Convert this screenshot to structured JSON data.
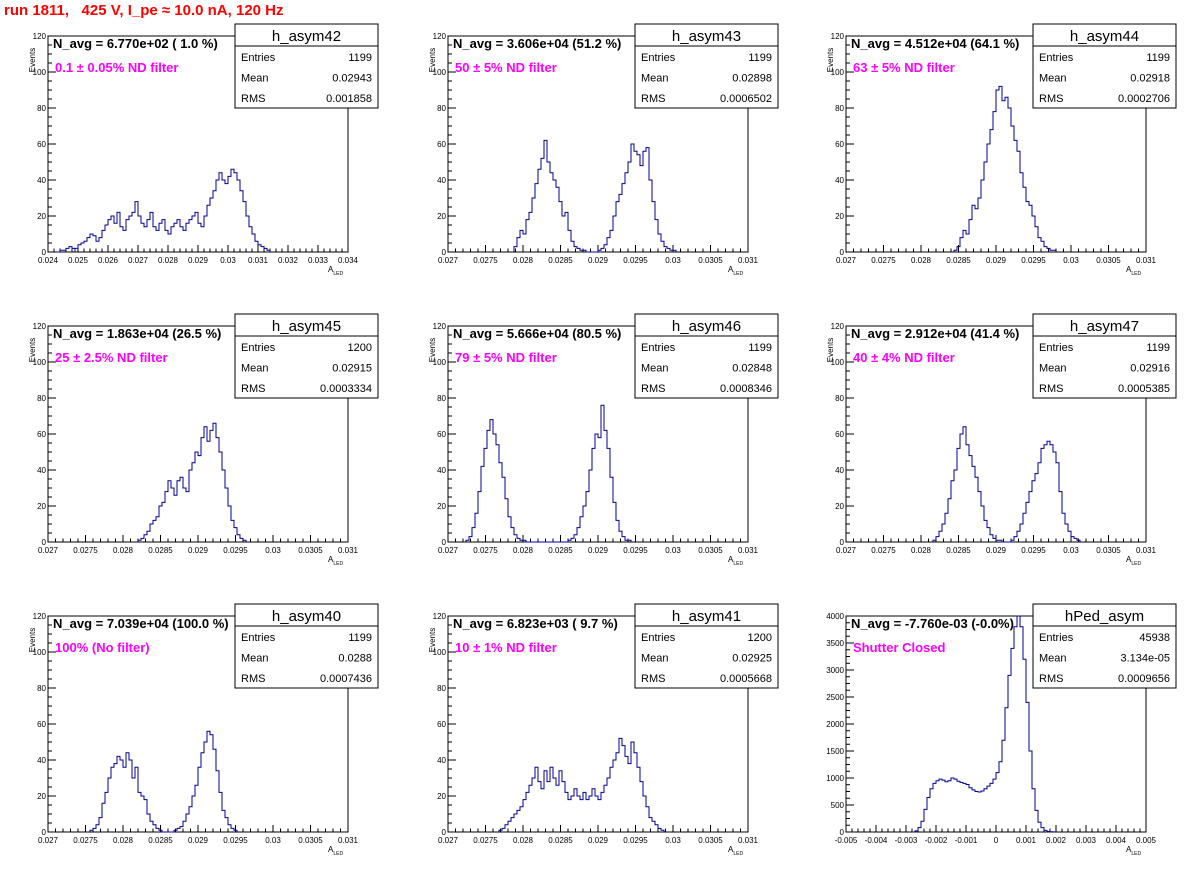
{
  "page_title": "run 1811,   425 V, I_pe ≈ 10.0 nA, 120 Hz",
  "colors": {
    "histogram_line": "#000099",
    "text": "#000000",
    "title": "#ff0000",
    "annotation": "#ff00ff"
  },
  "chart_data": [
    {
      "type": "histogram",
      "hist_name": "h_asym42",
      "stats": {
        "entries": "1199",
        "mean": "0.02943",
        "rms": "0.001858"
      },
      "navg_text": "N_avg = 6.770e+02 ( 1.0 %)",
      "filter_text": "0.1 ± 0.05% ND filter",
      "xlabel": "A",
      "xlabel_sub": "LED",
      "ylabel": "Events",
      "xlim": [
        0.024,
        0.034
      ],
      "ylim": [
        0,
        120
      ],
      "xticks": [
        "0.024",
        "0.025",
        "0.026",
        "0.027",
        "0.028",
        "0.029",
        "0.03",
        "0.031",
        "0.032",
        "0.033",
        "0.034"
      ],
      "yticks": [
        "0",
        "20",
        "40",
        "60",
        "80",
        "100",
        "120"
      ],
      "bin_width": 0.0001,
      "bins_x0": 0.0249,
      "counts": [
        2,
        4,
        5,
        6,
        8,
        10,
        9,
        6,
        8,
        12,
        15,
        18,
        20,
        16,
        22,
        14,
        12,
        18,
        20,
        22,
        28,
        20,
        16,
        14,
        18,
        22,
        14,
        12,
        16,
        18,
        12,
        10,
        14,
        16,
        18,
        14,
        12,
        16,
        18,
        20,
        22,
        16,
        14,
        20,
        26,
        30,
        34,
        40,
        44,
        40,
        38,
        42,
        46,
        44,
        40,
        34,
        28,
        20,
        14,
        10,
        6,
        4,
        3,
        2,
        1
      ],
      "extra_bins_x0": 0.0243,
      "extra_counts": [
        0,
        1,
        1,
        2,
        3,
        2
      ]
    },
    {
      "type": "histogram",
      "hist_name": "h_asym43",
      "stats": {
        "entries": "1199",
        "mean": "0.02898",
        "rms": "0.0006502"
      },
      "navg_text": "N_avg = 3.606e+04 (51.2 %)",
      "filter_text": "50 ± 5% ND filter",
      "xlabel": "A",
      "xlabel_sub": "LED",
      "ylabel": "Events",
      "xlim": [
        0.027,
        0.031
      ],
      "ylim": [
        0,
        120
      ],
      "xticks": [
        "0.027",
        "0.0275",
        "0.028",
        "0.0285",
        "0.029",
        "0.0295",
        "0.03",
        "0.0305",
        "0.031"
      ],
      "yticks": [
        "0",
        "20",
        "40",
        "60",
        "80",
        "100",
        "120"
      ],
      "bin_width": 4e-05,
      "bins_x0": 0.02788,
      "counts": [
        3,
        8,
        12,
        10,
        18,
        22,
        30,
        38,
        46,
        52,
        62,
        50,
        44,
        40,
        36,
        28,
        20,
        22,
        12,
        6,
        3,
        2,
        1,
        1,
        0,
        0,
        0,
        0,
        1,
        2,
        4,
        8,
        12,
        20,
        28,
        32,
        38,
        44,
        50,
        60,
        56,
        54,
        48,
        56,
        58,
        40,
        28,
        18,
        10,
        6,
        3,
        2,
        1,
        1
      ]
    },
    {
      "type": "histogram",
      "hist_name": "h_asym44",
      "stats": {
        "entries": "1199",
        "mean": "0.02918",
        "rms": "0.0002706"
      },
      "navg_text": "N_avg = 4.512e+04 (64.1 %)",
      "filter_text": "63 ± 5% ND filter",
      "xlabel": "A",
      "xlabel_sub": "LED",
      "ylabel": "Events",
      "xlim": [
        0.027,
        0.031
      ],
      "ylim": [
        0,
        120
      ],
      "xticks": [
        "0.027",
        "0.0275",
        "0.028",
        "0.0285",
        "0.029",
        "0.0295",
        "0.03",
        "0.0305",
        "0.031"
      ],
      "yticks": [
        "0",
        "20",
        "40",
        "60",
        "80",
        "100",
        "120"
      ],
      "bin_width": 4e-05,
      "bins_x0": 0.02844,
      "counts": [
        1,
        3,
        8,
        12,
        10,
        18,
        26,
        24,
        30,
        40,
        50,
        60,
        68,
        78,
        90,
        92,
        84,
        86,
        80,
        70,
        62,
        56,
        44,
        36,
        28,
        26,
        20,
        14,
        8,
        6,
        3,
        2,
        1,
        1
      ]
    },
    {
      "type": "histogram",
      "hist_name": "h_asym45",
      "stats": {
        "entries": "1200",
        "mean": "0.02915",
        "rms": "0.0003334"
      },
      "navg_text": "N_avg = 1.863e+04 (26.5 %)",
      "filter_text": "25 ± 2.5% ND filter",
      "xlabel": "A",
      "xlabel_sub": "LED",
      "ylabel": "Events",
      "xlim": [
        0.027,
        0.031
      ],
      "ylim": [
        0,
        120
      ],
      "xticks": [
        "0.027",
        "0.0275",
        "0.028",
        "0.0285",
        "0.029",
        "0.0295",
        "0.03",
        "0.0305",
        "0.031"
      ],
      "yticks": [
        "0",
        "20",
        "40",
        "60",
        "80",
        "100",
        "120"
      ],
      "bin_width": 4e-05,
      "bins_x0": 0.0282,
      "counts": [
        1,
        2,
        4,
        6,
        10,
        12,
        14,
        20,
        22,
        28,
        34,
        30,
        26,
        34,
        36,
        30,
        28,
        40,
        44,
        50,
        48,
        58,
        64,
        56,
        62,
        66,
        58,
        50,
        40,
        30,
        20,
        12,
        8,
        4,
        2,
        1
      ]
    },
    {
      "type": "histogram",
      "hist_name": "h_asym46",
      "stats": {
        "entries": "1199",
        "mean": "0.02848",
        "rms": "0.0008346"
      },
      "navg_text": "N_avg = 5.666e+04 (80.5 %)",
      "filter_text": "79 ± 5% ND filter",
      "xlabel": "A",
      "xlabel_sub": "LED",
      "ylabel": "Events",
      "xlim": [
        0.027,
        0.031
      ],
      "ylim": [
        0,
        120
      ],
      "xticks": [
        "0.027",
        "0.0275",
        "0.028",
        "0.0285",
        "0.029",
        "0.0295",
        "0.03",
        "0.0305",
        "0.031"
      ],
      "yticks": [
        "0",
        "20",
        "40",
        "60",
        "80",
        "100",
        "120"
      ],
      "bin_width": 4e-05,
      "bins_x0": 0.02724,
      "counts": [
        1,
        3,
        8,
        16,
        28,
        42,
        52,
        62,
        68,
        60,
        54,
        44,
        36,
        24,
        14,
        8,
        4,
        2,
        1,
        1,
        0,
        0,
        0,
        0,
        0,
        0,
        0,
        0,
        0,
        0,
        0,
        0,
        0,
        0,
        1,
        2,
        4,
        8,
        14,
        20,
        28,
        40,
        52,
        60,
        58,
        76,
        62,
        52,
        36,
        22,
        12,
        6,
        3,
        1,
        1
      ]
    },
    {
      "type": "histogram",
      "hist_name": "h_asym47",
      "stats": {
        "entries": "1199",
        "mean": "0.02916",
        "rms": "0.0005385"
      },
      "navg_text": "N_avg = 2.912e+04 (41.4 %)",
      "filter_text": "40 ± 4% ND filter",
      "xlabel": "A",
      "xlabel_sub": "LED",
      "ylabel": "Events",
      "xlim": [
        0.027,
        0.031
      ],
      "ylim": [
        0,
        120
      ],
      "xticks": [
        "0.027",
        "0.0275",
        "0.028",
        "0.0285",
        "0.029",
        "0.0295",
        "0.03",
        "0.0305",
        "0.031"
      ],
      "yticks": [
        "0",
        "20",
        "40",
        "60",
        "80",
        "100",
        "120"
      ],
      "bin_width": 4e-05,
      "bins_x0": 0.02816,
      "counts": [
        1,
        3,
        6,
        10,
        16,
        24,
        34,
        40,
        52,
        60,
        64,
        54,
        48,
        42,
        36,
        28,
        20,
        12,
        8,
        4,
        2,
        1,
        1,
        0,
        0,
        0,
        1,
        3,
        6,
        10,
        16,
        22,
        28,
        34,
        38,
        44,
        52,
        54,
        56,
        54,
        50,
        44,
        28,
        16,
        10,
        6,
        3,
        2,
        1
      ]
    },
    {
      "type": "histogram",
      "hist_name": "h_asym40",
      "stats": {
        "entries": "1199",
        "mean": "0.0288",
        "rms": "0.0007436"
      },
      "navg_text": "N_avg = 7.039e+04 (100.0 %)",
      "filter_text": "100% (No filter)",
      "xlabel": "A",
      "xlabel_sub": "LED",
      "ylabel": "Events",
      "xlim": [
        0.027,
        0.031
      ],
      "ylim": [
        0,
        120
      ],
      "xticks": [
        "0.027",
        "0.0275",
        "0.028",
        "0.0285",
        "0.029",
        "0.0295",
        "0.03",
        "0.0305",
        "0.031"
      ],
      "yticks": [
        "0",
        "20",
        "40",
        "60",
        "80",
        "100",
        "120"
      ],
      "bin_width": 4e-05,
      "bins_x0": 0.02756,
      "counts": [
        1,
        2,
        4,
        8,
        16,
        22,
        30,
        36,
        38,
        42,
        40,
        36,
        44,
        40,
        30,
        36,
        22,
        20,
        18,
        10,
        6,
        4,
        2,
        1,
        0,
        0,
        0,
        0,
        1,
        2,
        3,
        6,
        10,
        14,
        20,
        26,
        36,
        44,
        50,
        56,
        54,
        46,
        34,
        22,
        12,
        8,
        4,
        2,
        1
      ]
    },
    {
      "type": "histogram",
      "hist_name": "h_asym41",
      "stats": {
        "entries": "1200",
        "mean": "0.02925",
        "rms": "0.0005668"
      },
      "navg_text": "N_avg = 6.823e+03 ( 9.7 %)",
      "filter_text": "10 ± 1% ND filter",
      "xlabel": "A",
      "xlabel_sub": "LED",
      "ylabel": "Events",
      "xlim": [
        0.027,
        0.031
      ],
      "ylim": [
        0,
        120
      ],
      "xticks": [
        "0.027",
        "0.0275",
        "0.028",
        "0.0285",
        "0.029",
        "0.0295",
        "0.03",
        "0.0305",
        "0.031"
      ],
      "yticks": [
        "0",
        "20",
        "40",
        "60",
        "80",
        "100",
        "120"
      ],
      "bin_width": 4e-05,
      "bins_x0": 0.02768,
      "counts": [
        1,
        2,
        4,
        6,
        8,
        10,
        12,
        14,
        18,
        22,
        26,
        30,
        36,
        28,
        24,
        34,
        28,
        36,
        30,
        26,
        34,
        28,
        22,
        18,
        20,
        24,
        20,
        18,
        22,
        18,
        20,
        24,
        20,
        18,
        22,
        26,
        30,
        36,
        40,
        44,
        52,
        48,
        42,
        38,
        50,
        44,
        36,
        28,
        20,
        14,
        8,
        6,
        4,
        2,
        1
      ]
    },
    {
      "type": "histogram",
      "hist_name": "hPed_asym",
      "stats": {
        "entries": "45938",
        "mean": "3.134e-05",
        "rms": "0.0009656"
      },
      "navg_text": "N_avg = -7.760e-03 (-0.0%)",
      "filter_text": "Shutter Closed",
      "xlabel": "A",
      "xlabel_sub": "LED",
      "ylabel": "",
      "xlim": [
        -0.005,
        0.005
      ],
      "ylim": [
        0,
        4000
      ],
      "xticks": [
        "-0.005",
        "-0.004",
        "-0.003",
        "-0.002",
        "-0.001",
        "0",
        "0.001",
        "0.002",
        "0.003",
        "0.004",
        "0.005"
      ],
      "yticks": [
        "0",
        "500",
        "1000",
        "1500",
        "2000",
        "2500",
        "3000",
        "3500",
        "4000"
      ],
      "bin_width": 0.0001,
      "bins_x0": -0.0028,
      "counts": [
        0,
        20,
        80,
        200,
        420,
        640,
        800,
        900,
        950,
        980,
        960,
        930,
        950,
        1000,
        980,
        940,
        920,
        900,
        880,
        820,
        780,
        750,
        740,
        760,
        800,
        850,
        900,
        980,
        1100,
        1300,
        1700,
        2300,
        2900,
        3400,
        3800,
        4000,
        3800,
        3200,
        2400,
        1500,
        800,
        400,
        180,
        80,
        30,
        10,
        5,
        2
      ]
    }
  ]
}
